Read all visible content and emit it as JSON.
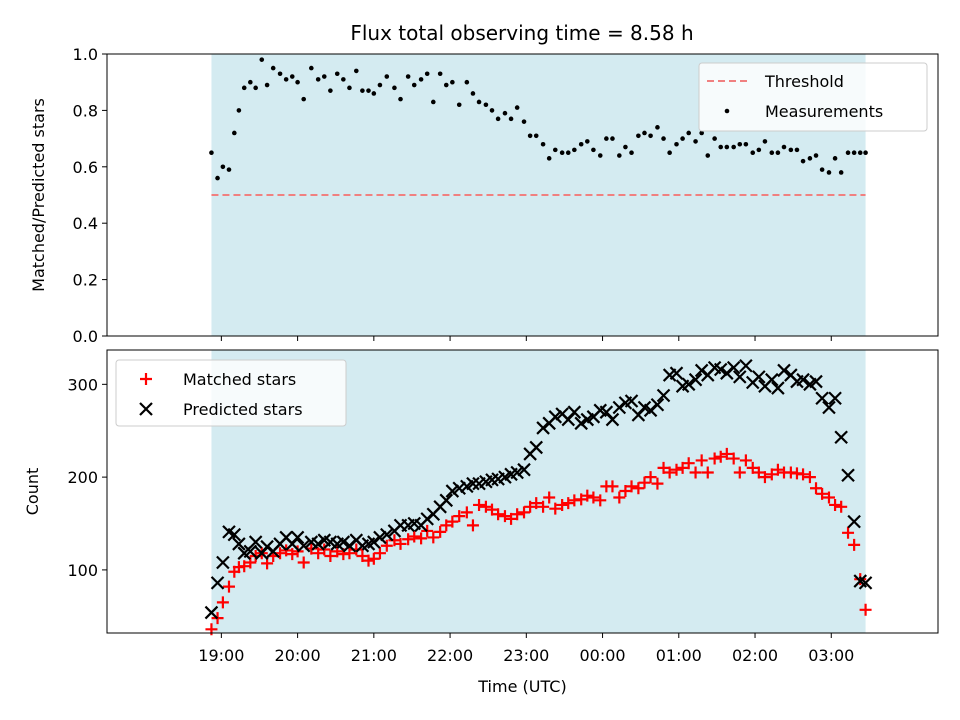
{
  "title": "Flux total observing time = 8.58 h",
  "colors": {
    "background_band": "#d4ebf1",
    "threshold": "#f08080",
    "measurements": "#000000",
    "matched": "#ff0000",
    "predicted": "#000000"
  },
  "chart_data": [
    {
      "type": "scatter",
      "ylabel": "Matched/Predicted stars",
      "xlabel": "",
      "ylim": [
        0,
        1.0
      ],
      "yticks": [
        "0.0",
        "0.2",
        "0.4",
        "0.6",
        "0.8",
        "1.0"
      ],
      "x_unit": "hours after 18:00 UTC",
      "xlim": [
        17.5,
        28.4
      ],
      "observing_window": [
        18.87,
        27.45
      ],
      "threshold": 0.5,
      "legend": {
        "position": "top-right",
        "entries": [
          "Threshold",
          "Measurements"
        ]
      },
      "series": [
        {
          "name": "Measurements",
          "x": [
            18.87,
            18.95,
            19.02,
            19.1,
            19.17,
            19.23,
            19.3,
            19.38,
            19.45,
            19.53,
            19.6,
            19.68,
            19.77,
            19.85,
            19.93,
            20.0,
            20.08,
            20.18,
            20.27,
            20.35,
            20.43,
            20.52,
            20.6,
            20.68,
            20.77,
            20.85,
            20.93,
            21.0,
            21.08,
            21.17,
            21.27,
            21.35,
            21.45,
            21.53,
            21.62,
            21.7,
            21.78,
            21.87,
            21.95,
            22.03,
            22.12,
            22.22,
            22.3,
            22.38,
            22.47,
            22.55,
            22.63,
            22.72,
            22.8,
            22.88,
            22.97,
            23.05,
            23.13,
            23.22,
            23.3,
            23.38,
            23.47,
            23.55,
            23.63,
            23.72,
            23.8,
            23.88,
            23.97,
            24.05,
            24.13,
            24.22,
            24.3,
            24.38,
            24.47,
            24.55,
            24.63,
            24.72,
            24.8,
            24.88,
            24.97,
            25.05,
            25.13,
            25.22,
            25.3,
            25.38,
            25.47,
            25.55,
            25.63,
            25.72,
            25.8,
            25.88,
            25.97,
            26.05,
            26.13,
            26.22,
            26.3,
            26.38,
            26.47,
            26.55,
            26.63,
            26.72,
            26.8,
            26.88,
            26.97,
            27.05,
            27.13,
            27.22,
            27.3,
            27.38,
            27.45
          ],
          "values": [
            0.65,
            0.56,
            0.6,
            0.59,
            0.72,
            0.8,
            0.88,
            0.9,
            0.88,
            0.98,
            0.89,
            0.95,
            0.93,
            0.91,
            0.92,
            0.9,
            0.84,
            0.95,
            0.91,
            0.92,
            0.87,
            0.93,
            0.91,
            0.88,
            0.94,
            0.87,
            0.87,
            0.86,
            0.89,
            0.92,
            0.88,
            0.84,
            0.92,
            0.89,
            0.91,
            0.93,
            0.83,
            0.93,
            0.89,
            0.9,
            0.82,
            0.9,
            0.86,
            0.83,
            0.82,
            0.8,
            0.77,
            0.79,
            0.77,
            0.81,
            0.76,
            0.71,
            0.71,
            0.68,
            0.63,
            0.66,
            0.65,
            0.65,
            0.66,
            0.68,
            0.69,
            0.66,
            0.64,
            0.7,
            0.7,
            0.64,
            0.67,
            0.65,
            0.71,
            0.72,
            0.71,
            0.74,
            0.7,
            0.65,
            0.68,
            0.7,
            0.72,
            0.69,
            0.72,
            0.64,
            0.7,
            0.67,
            0.67,
            0.67,
            0.68,
            0.68,
            0.65,
            0.66,
            0.69,
            0.65,
            0.65,
            0.67,
            0.66,
            0.66,
            0.62,
            0.63,
            0.64,
            0.59,
            0.58,
            0.63,
            0.58,
            0.65,
            0.65,
            0.65,
            0.65
          ]
        }
      ]
    },
    {
      "type": "scatter",
      "ylabel": "Count",
      "xlabel": "Time (UTC)",
      "ylim": [
        32,
        337
      ],
      "yticks": [
        "100",
        "200",
        "300"
      ],
      "x_unit": "hours after 18:00 UTC",
      "xlim": [
        17.5,
        28.4
      ],
      "xticks": [
        "19:00",
        "20:00",
        "21:00",
        "22:00",
        "23:00",
        "00:00",
        "01:00",
        "02:00",
        "03:00"
      ],
      "observing_window": [
        18.87,
        27.45
      ],
      "legend": {
        "position": "top-left",
        "entries": [
          "Matched stars",
          "Predicted stars"
        ]
      },
      "series": [
        {
          "name": "Matched stars",
          "x": [
            18.87,
            18.95,
            19.02,
            19.1,
            19.17,
            19.23,
            19.3,
            19.38,
            19.45,
            19.53,
            19.6,
            19.68,
            19.77,
            19.85,
            19.93,
            20.0,
            20.08,
            20.18,
            20.27,
            20.35,
            20.43,
            20.52,
            20.6,
            20.68,
            20.77,
            20.85,
            20.93,
            21.0,
            21.08,
            21.17,
            21.27,
            21.35,
            21.45,
            21.53,
            21.62,
            21.7,
            21.78,
            21.87,
            21.95,
            22.03,
            22.12,
            22.22,
            22.3,
            22.38,
            22.47,
            22.55,
            22.63,
            22.72,
            22.8,
            22.88,
            22.97,
            23.05,
            23.13,
            23.22,
            23.3,
            23.38,
            23.47,
            23.55,
            23.63,
            23.72,
            23.8,
            23.88,
            23.97,
            24.05,
            24.13,
            24.22,
            24.3,
            24.38,
            24.47,
            24.55,
            24.63,
            24.72,
            24.8,
            24.88,
            24.97,
            25.05,
            25.13,
            25.22,
            25.3,
            25.38,
            25.47,
            25.55,
            25.63,
            25.72,
            25.8,
            25.88,
            25.97,
            26.05,
            26.13,
            26.22,
            26.3,
            26.38,
            26.47,
            26.55,
            26.63,
            26.72,
            26.8,
            26.88,
            26.97,
            27.05,
            27.13,
            27.22,
            27.3,
            27.38,
            27.45
          ],
          "values": [
            36,
            48,
            65,
            82,
            98,
            103,
            104,
            108,
            115,
            118,
            107,
            115,
            118,
            121,
            117,
            120,
            108,
            123,
            118,
            122,
            115,
            120,
            117,
            118,
            122,
            115,
            110,
            112,
            118,
            126,
            132,
            128,
            133,
            136,
            134,
            142,
            135,
            141,
            148,
            152,
            158,
            162,
            148,
            170,
            168,
            165,
            160,
            158,
            155,
            160,
            162,
            168,
            172,
            168,
            178,
            166,
            170,
            172,
            175,
            176,
            180,
            178,
            175,
            190,
            190,
            178,
            185,
            190,
            188,
            194,
            200,
            193,
            210,
            205,
            208,
            210,
            215,
            205,
            218,
            205,
            220,
            222,
            225,
            220,
            205,
            218,
            210,
            205,
            200,
            203,
            208,
            205,
            205,
            204,
            203,
            200,
            188,
            182,
            178,
            170,
            168,
            140,
            127,
            90,
            57
          ]
        },
        {
          "name": "Predicted stars",
          "x": [
            18.87,
            18.95,
            19.02,
            19.1,
            19.17,
            19.23,
            19.3,
            19.38,
            19.45,
            19.53,
            19.6,
            19.68,
            19.77,
            19.85,
            19.93,
            20.0,
            20.08,
            20.18,
            20.27,
            20.35,
            20.43,
            20.52,
            20.6,
            20.68,
            20.77,
            20.85,
            20.93,
            21.0,
            21.08,
            21.17,
            21.27,
            21.35,
            21.45,
            21.53,
            21.62,
            21.7,
            21.78,
            21.87,
            21.95,
            22.03,
            22.12,
            22.22,
            22.3,
            22.38,
            22.47,
            22.55,
            22.63,
            22.72,
            22.8,
            22.88,
            22.97,
            23.05,
            23.13,
            23.22,
            23.3,
            23.38,
            23.47,
            23.55,
            23.63,
            23.72,
            23.8,
            23.88,
            23.97,
            24.05,
            24.13,
            24.22,
            24.3,
            24.38,
            24.47,
            24.55,
            24.63,
            24.72,
            24.8,
            24.88,
            24.97,
            25.05,
            25.13,
            25.22,
            25.3,
            25.38,
            25.47,
            25.55,
            25.63,
            25.72,
            25.8,
            25.88,
            25.97,
            26.05,
            26.13,
            26.22,
            26.3,
            26.38,
            26.47,
            26.55,
            26.63,
            26.72,
            26.8,
            26.88,
            26.97,
            27.05,
            27.13,
            27.22,
            27.3,
            27.38,
            27.45
          ],
          "values": [
            54,
            86,
            108,
            141,
            138,
            128,
            118,
            120,
            130,
            118,
            125,
            120,
            128,
            135,
            128,
            135,
            126,
            130,
            128,
            132,
            130,
            128,
            130,
            126,
            132,
            126,
            128,
            130,
            135,
            138,
            142,
            148,
            148,
            150,
            148,
            155,
            160,
            168,
            175,
            185,
            188,
            190,
            193,
            193,
            195,
            197,
            198,
            200,
            203,
            205,
            208,
            225,
            232,
            253,
            258,
            265,
            268,
            262,
            270,
            258,
            262,
            265,
            272,
            270,
            262,
            275,
            280,
            282,
            267,
            275,
            272,
            278,
            288,
            310,
            312,
            298,
            300,
            305,
            315,
            310,
            318,
            316,
            312,
            318,
            308,
            320,
            302,
            308,
            298,
            305,
            296,
            315,
            310,
            303,
            305,
            300,
            303,
            285,
            275,
            285,
            243,
            202,
            152,
            88,
            86
          ]
        }
      ]
    }
  ]
}
